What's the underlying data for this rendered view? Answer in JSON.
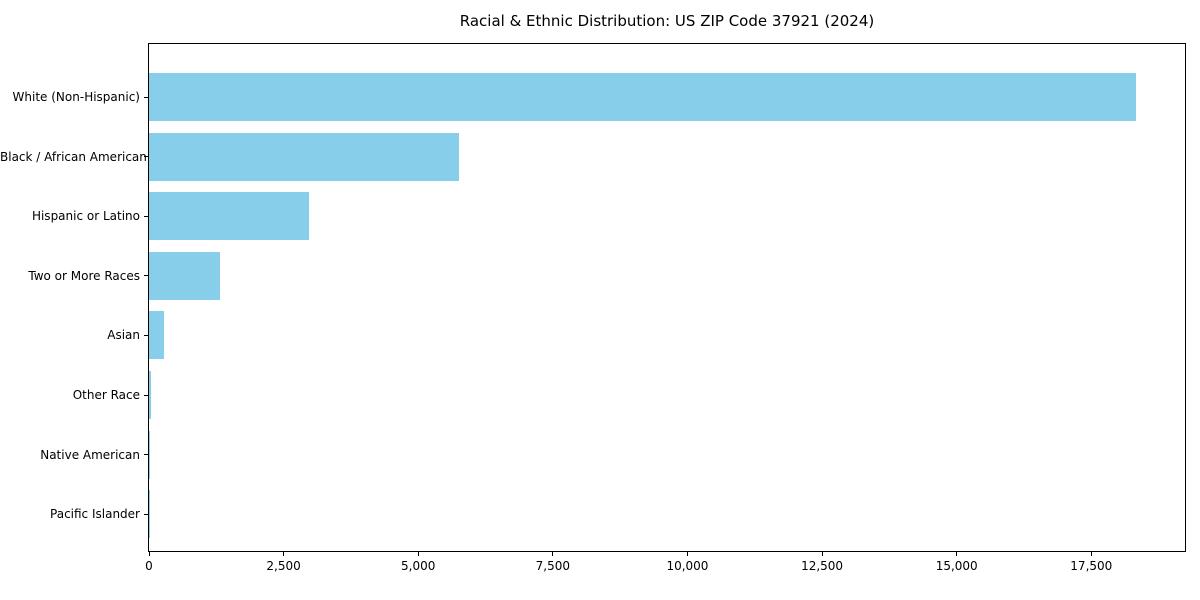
{
  "chart_data": {
    "type": "bar",
    "orientation": "horizontal",
    "title": "Racial & Ethnic Distribution: US ZIP Code 37921 (2024)",
    "categories": [
      "White (Non-Hispanic)",
      "Black / African American",
      "Hispanic or Latino",
      "Two or More Races",
      "Asian",
      "Other Race",
      "Native American",
      "Pacific Islander"
    ],
    "values": [
      18325,
      5765,
      2965,
      1315,
      280,
      30,
      12,
      5
    ],
    "xlabel": "",
    "ylabel": "",
    "xlim": [
      0,
      19240
    ],
    "x_ticks": [
      0,
      2500,
      5000,
      7500,
      10000,
      12500,
      15000,
      17500
    ],
    "x_tick_labels": [
      "0",
      "2,500",
      "5,000",
      "7,500",
      "10,000",
      "12,500",
      "15,000",
      "17,500"
    ],
    "grid": false,
    "legend": null,
    "bar_color": "#87CEEB",
    "frame_color": "#000000",
    "text_color": "#000000",
    "background_color": "#ffffff"
  }
}
